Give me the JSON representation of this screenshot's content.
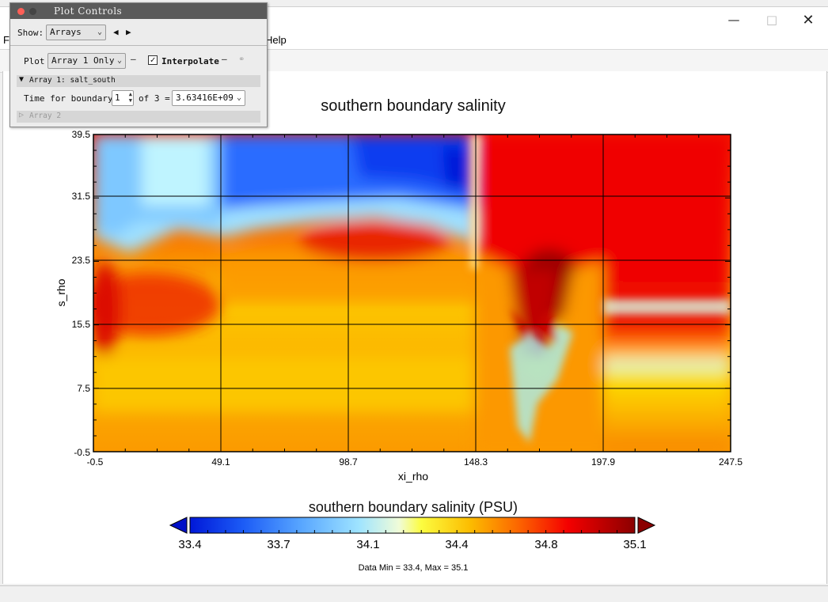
{
  "window": {
    "minimize_icon": "minimize-icon",
    "maximize_icon": "maximize-icon",
    "close_icon": "close-icon"
  },
  "menu": {
    "items": [
      "Fi",
      "Help"
    ]
  },
  "plot_controls": {
    "title": "Plot Controls",
    "show_label": "Show:",
    "show_value": "Arrays",
    "plot_label": "Plot",
    "plot_value": "Array 1 Only",
    "interpolate_label": "Interpolate",
    "interpolate_checked": true,
    "array1_header": "Array 1: salt_south",
    "time_label": "Time for boundary:",
    "time_index": "1",
    "of_label": "of 3 =",
    "time_value": "3.63416E+09",
    "array2_header": "Array 2"
  },
  "plot": {
    "title": "southern boundary salinity",
    "colorbar_title": "southern boundary salinity (PSU)",
    "data_range_text": "Data Min = 33.4, Max = 35.1",
    "colorbar_ticks": [
      "33.4",
      "33.7",
      "34.1",
      "34.4",
      "34.8",
      "35.1"
    ],
    "colors": {
      "low": "#0018d8",
      "mid": "#fcfc40",
      "high": "#8b0000"
    }
  },
  "chart_data": {
    "type": "heatmap",
    "title": "southern boundary salinity",
    "xlabel": "xi_rho",
    "ylabel": "s_rho",
    "xlim": [
      -0.5,
      247.5
    ],
    "ylim": [
      -0.5,
      39.5
    ],
    "x_ticks": [
      "-0.5",
      "49.1",
      "98.7",
      "148.3",
      "197.9",
      "247.5"
    ],
    "y_ticks": [
      "-0.5",
      "7.5",
      "15.5",
      "23.5",
      "31.5",
      "39.5"
    ],
    "colorbar": {
      "title": "southern boundary salinity (PSU)",
      "min": 33.4,
      "max": 35.1,
      "ticks": [
        33.4,
        33.7,
        34.1,
        34.4,
        34.8,
        35.1
      ]
    },
    "grid": true,
    "value_min": 33.4,
    "value_max": 35.1
  }
}
